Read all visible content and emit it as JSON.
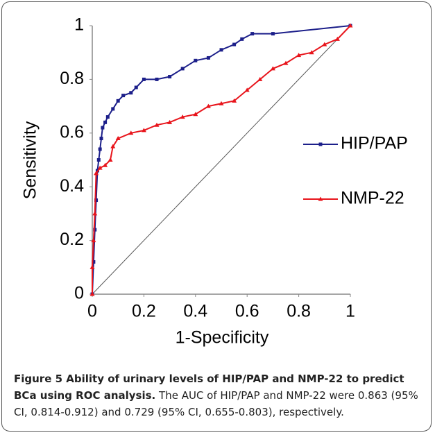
{
  "chart_data": {
    "type": "line",
    "xlabel": "1-Specificity",
    "ylabel": "Sensitivity",
    "xlim": [
      0,
      1
    ],
    "ylim": [
      0,
      1
    ],
    "xticks": [
      0,
      0.2,
      0.4,
      0.6,
      0.8,
      1
    ],
    "yticks": [
      0,
      0.2,
      0.4,
      0.6,
      0.8,
      1
    ],
    "legend": "right",
    "diagonal": true,
    "series": [
      {
        "name": "HIP/PAP",
        "color": "#1c1f8a",
        "marker": "square",
        "x": [
          0,
          0.005,
          0.01,
          0.015,
          0.02,
          0.025,
          0.03,
          0.035,
          0.04,
          0.05,
          0.06,
          0.08,
          0.1,
          0.12,
          0.15,
          0.17,
          0.2,
          0.25,
          0.3,
          0.35,
          0.4,
          0.45,
          0.5,
          0.55,
          0.58,
          0.62,
          0.7,
          1
        ],
        "values": [
          0,
          0.12,
          0.24,
          0.35,
          0.46,
          0.5,
          0.54,
          0.58,
          0.62,
          0.64,
          0.66,
          0.69,
          0.72,
          0.74,
          0.75,
          0.77,
          0.8,
          0.8,
          0.81,
          0.84,
          0.87,
          0.88,
          0.91,
          0.93,
          0.95,
          0.97,
          0.97,
          1
        ]
      },
      {
        "name": "NMP-22",
        "color": "#e8141b",
        "marker": "triangle",
        "x": [
          0,
          0,
          0.005,
          0.01,
          0.015,
          0.03,
          0.05,
          0.07,
          0.08,
          0.1,
          0.15,
          0.2,
          0.25,
          0.3,
          0.35,
          0.4,
          0.45,
          0.5,
          0.55,
          0.6,
          0.65,
          0.7,
          0.75,
          0.8,
          0.85,
          0.9,
          0.95,
          1
        ],
        "values": [
          0,
          0.1,
          0.2,
          0.3,
          0.45,
          0.47,
          0.48,
          0.5,
          0.55,
          0.58,
          0.6,
          0.61,
          0.63,
          0.64,
          0.66,
          0.67,
          0.7,
          0.71,
          0.72,
          0.76,
          0.8,
          0.84,
          0.86,
          0.89,
          0.9,
          0.93,
          0.95,
          1
        ]
      }
    ]
  },
  "caption": {
    "title": "Figure 5 Ability of urinary levels of HIP/PAP and NMP-22 to predict BCa using ROC analysis.",
    "text": "The AUC of HIP/PAP and NMP-22 were 0.863 (95% CI, 0.814-0.912) and 0.729 (95% CI, 0.655-0.803), respectively."
  }
}
